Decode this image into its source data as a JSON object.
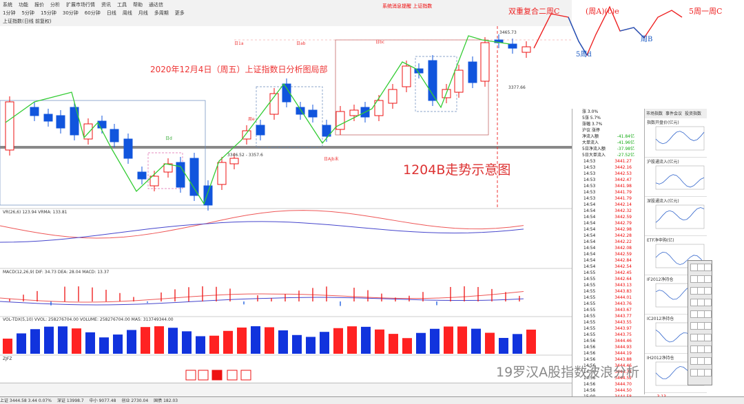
{
  "menu": {
    "row1": [
      "系统",
      "功能",
      "报价",
      "分析",
      "扩展市场行情",
      "资讯",
      "工具",
      "帮助",
      "通达信"
    ],
    "row2": [
      "1分钟",
      "5分钟",
      "15分钟",
      "30分钟",
      "60分钟",
      "日线",
      "周线",
      "月线",
      "多周期",
      "更多"
    ],
    "row3": "上证指数(日线 前复权)",
    "alert": "系统消息提醒 上证指数"
  },
  "chart": {
    "title": "2020年12月4日（周五）上证指数日分析图局部",
    "overlay": "1204B走势示意图",
    "annotations": [
      "日1a",
      "日ab",
      "日bc",
      "日d",
      "周e",
      "日Ajb末",
      "浪→第一回Ab",
      "日A",
      "日1b"
    ],
    "low_labels": [
      "3346.52 - 3357.6"
    ],
    "right_prices": [
      "3465.73",
      "3377.66"
    ]
  },
  "handwritten": {
    "red": [
      "双重复合二周C",
      "(周A)(c)e",
      "5周一周C"
    ],
    "blue": [
      "5周d",
      "周B"
    ]
  },
  "indicators": {
    "vr_label": "VR(26,6) 123.94  VRMA: 133.81",
    "macd_label": "MACD(12,26,9) DIF: 34.73  DEA: 28.04  MACD: 13.37",
    "vol_label": "VOL-TDX(5,10) VVOL: 258276704.00  VOLUME: 258276704.00  MA5: 313749344.00",
    "zjfz_label": "ZJFZ"
  },
  "panel": {
    "header": [
      "涨 3.0%",
      "5涨 5.7%",
      "涨幅 3.7%",
      "沪议 涨停",
      "净流入额",
      "大单流入",
      "5日净流入额",
      "5日大单流入"
    ],
    "values": [
      "-41.84亿",
      "-41.96亿",
      "-37.98亿",
      "-27.52亿"
    ],
    "pct": [
      "-1%",
      "-1%",
      "-8%",
      "-9%"
    ],
    "ticks": [
      {
        "t": "14:53",
        "p": "3441.27",
        "v": "1.30"
      },
      {
        "t": "14:53",
        "p": "3442.16",
        "v": "1.54"
      },
      {
        "t": "14:53",
        "p": "3442.53",
        "v": "1.21"
      },
      {
        "t": "14:53",
        "p": "3442.47",
        "v": "1.27"
      },
      {
        "t": "14:53",
        "p": "3441.98",
        "v": "1.08"
      },
      {
        "t": "14:53",
        "p": "3441.79",
        "v": "1.21"
      },
      {
        "t": "14:53",
        "p": "3441.79",
        "v": "1.33"
      },
      {
        "t": "14:54",
        "p": "3442.14",
        "v": "1.66"
      },
      {
        "t": "14:54",
        "p": "3442.32",
        "v": "1.32"
      },
      {
        "t": "14:54",
        "p": "3442.59",
        "v": "1.14"
      },
      {
        "t": "14:54",
        "p": "3442.79",
        "v": "1.20"
      },
      {
        "t": "14:54",
        "p": "3442.98",
        "v": "1.35"
      },
      {
        "t": "14:54",
        "p": "3442.28",
        "v": "1.29"
      },
      {
        "t": "14:54",
        "p": "3442.22",
        "v": "1.39"
      },
      {
        "t": "14:54",
        "p": "3442.08",
        "v": "1.42"
      },
      {
        "t": "14:54",
        "p": "3442.59",
        "v": "1.63"
      },
      {
        "t": "14:54",
        "p": "3442.84",
        "v": "1.46"
      },
      {
        "t": "14:54",
        "p": "3442.54",
        "v": "1.47"
      },
      {
        "t": "14:55",
        "p": "3442.45",
        "v": "1.99"
      },
      {
        "t": "14:55",
        "p": "3442.64",
        "v": "2.02"
      },
      {
        "t": "14:55",
        "p": "3443.13",
        "v": "1.87"
      },
      {
        "t": "14:55",
        "p": "3443.83",
        "v": "2.00"
      },
      {
        "t": "14:55",
        "p": "3444.01",
        "v": "1.88"
      },
      {
        "t": "14:55",
        "p": "3443.76",
        "v": "1.65"
      },
      {
        "t": "14:55",
        "p": "3443.67",
        "v": "2.00"
      },
      {
        "t": "14:55",
        "p": "3443.77",
        "v": "1.46"
      },
      {
        "t": "14:55",
        "p": "3443.55",
        "v": "1.57"
      },
      {
        "t": "14:55",
        "p": "3443.97",
        "v": "2.01"
      },
      {
        "t": "14:55",
        "p": "3443.75",
        "v": "1.72"
      },
      {
        "t": "14:56",
        "p": "3444.46",
        "v": "2.02"
      },
      {
        "t": "14:56",
        "p": "3444.93",
        "v": "1.89"
      },
      {
        "t": "14:56",
        "p": "3444.19",
        "v": "1.68"
      },
      {
        "t": "14:56",
        "p": "3443.88",
        "v": "2.14"
      },
      {
        "t": "14:56",
        "p": "3444.46",
        "v": "1.76"
      },
      {
        "t": "14:56",
        "p": "3444.32",
        "v": "2.24"
      },
      {
        "t": "14:56",
        "p": "3444.52",
        "v": "1.85"
      },
      {
        "t": "14:56",
        "p": "3444.70",
        "v": "1.72"
      },
      {
        "t": "14:56",
        "p": "3444.50",
        "v": "2.63"
      },
      {
        "t": "15:00",
        "p": "3444.58",
        "v": "3.13"
      }
    ]
  },
  "mini": {
    "tabs": [
      "市场指数",
      "事件会议",
      "投资指数"
    ],
    "titles": [
      "指数开盘价(亿元)",
      "沪股通流入(亿元)",
      "深股通流入(亿元)",
      "ETF净申购(亿)",
      "IF2012净持仓",
      "IC2012净持仓",
      "IH2012净持仓"
    ]
  },
  "statusbar": [
    "上证 3444.58 3.44 0.07%",
    "深证 13998.7",
    "中小 9077.48",
    "创业 2730.04",
    "国债 182.03"
  ],
  "watermark": "19罗汉A股指数波浪分析",
  "colors": {
    "up": "#e11",
    "down": "#1155dd",
    "ma": "#3c3",
    "ma2": "#e66"
  }
}
